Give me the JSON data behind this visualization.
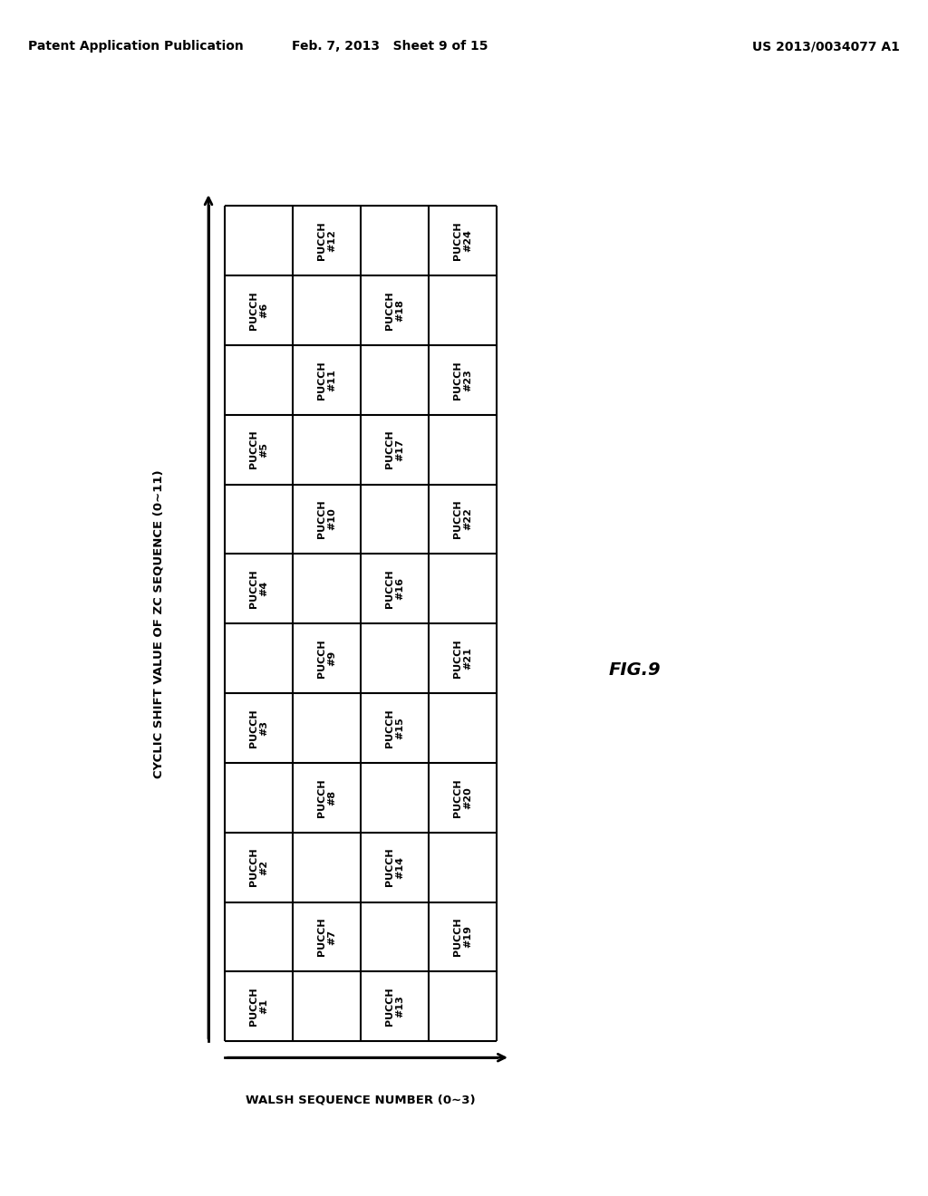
{
  "title_left": "Patent Application Publication",
  "title_mid": "Feb. 7, 2013   Sheet 9 of 15",
  "title_right": "US 2013/0034077 A1",
  "fig_label": "FIG.9",
  "ylabel": "CYCLIC SHIFT VALUE OF ZC SEQUENCE (0∼11)",
  "xlabel": "WALSH SEQUENCE NUMBER (0∼3)",
  "num_cols": 4,
  "num_rows": 12,
  "cells": [
    {
      "row": 0,
      "col": 0,
      "label": "PUCCH\n#1"
    },
    {
      "row": 0,
      "col": 2,
      "label": "PUCCH\n#13"
    },
    {
      "row": 1,
      "col": 1,
      "label": "PUCCH\n#7"
    },
    {
      "row": 1,
      "col": 3,
      "label": "PUCCH\n#19"
    },
    {
      "row": 2,
      "col": 0,
      "label": "PUCCH\n#2"
    },
    {
      "row": 2,
      "col": 2,
      "label": "PUCCH\n#14"
    },
    {
      "row": 3,
      "col": 1,
      "label": "PUCCH\n#8"
    },
    {
      "row": 3,
      "col": 3,
      "label": "PUCCH\n#20"
    },
    {
      "row": 4,
      "col": 0,
      "label": "PUCCH\n#3"
    },
    {
      "row": 4,
      "col": 2,
      "label": "PUCCH\n#15"
    },
    {
      "row": 5,
      "col": 1,
      "label": "PUCCH\n#9"
    },
    {
      "row": 5,
      "col": 3,
      "label": "PUCCH\n#21"
    },
    {
      "row": 6,
      "col": 0,
      "label": "PUCCH\n#4"
    },
    {
      "row": 6,
      "col": 2,
      "label": "PUCCH\n#16"
    },
    {
      "row": 7,
      "col": 1,
      "label": "PUCCH\n#10"
    },
    {
      "row": 7,
      "col": 3,
      "label": "PUCCH\n#22"
    },
    {
      "row": 8,
      "col": 0,
      "label": "PUCCH\n#5"
    },
    {
      "row": 8,
      "col": 2,
      "label": "PUCCH\n#17"
    },
    {
      "row": 9,
      "col": 1,
      "label": "PUCCH\n#11"
    },
    {
      "row": 9,
      "col": 3,
      "label": "PUCCH\n#23"
    },
    {
      "row": 10,
      "col": 0,
      "label": "PUCCH\n#6"
    },
    {
      "row": 10,
      "col": 2,
      "label": "PUCCH\n#18"
    },
    {
      "row": 11,
      "col": 1,
      "label": "PUCCH\n#12"
    },
    {
      "row": 11,
      "col": 3,
      "label": "PUCCH\n#24"
    }
  ],
  "background_color": "#ffffff",
  "grid_color": "#000000",
  "text_color": "#000000",
  "cell_text_fontsize": 8,
  "header_fontsize": 10,
  "axis_label_fontsize": 9.5,
  "fig_label_fontsize": 14
}
